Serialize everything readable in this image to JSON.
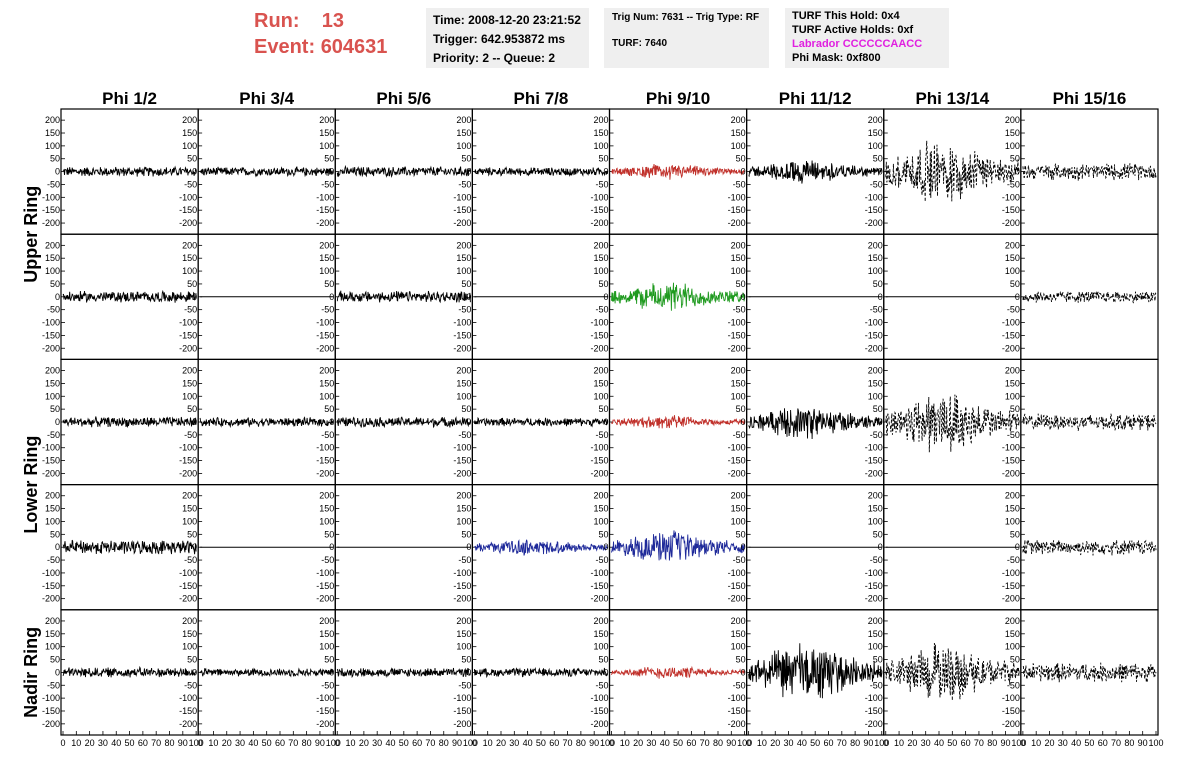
{
  "header": {
    "run_label": "Run:",
    "run_value": "13",
    "event_label": "Event:",
    "event_value": "604631",
    "time": "Time: 2008-12-20 23:21:52",
    "trigger": "Trigger: 642.953872 ms",
    "priority": "Priority: 2 -- Queue: 2",
    "trig_num": "Trig Num: 7631 -- Trig Type: RF",
    "turf": "TURF: 7640",
    "turf_hold": "TURF This Hold: 0x4",
    "turf_active": "TURF Active Holds: 0xf",
    "labrador": "Labrador CCCCCCAACC",
    "phi_mask": "Phi Mask: 0xf800"
  },
  "colors": {
    "run_text": "#d9534f",
    "labrador_text": "#e020e0",
    "trace_black": "#000000",
    "trace_red": "#c0302a",
    "trace_green": "#1f9a1f",
    "trace_blue": "#1f2a9a",
    "info_bg": "#efefef"
  },
  "chart_data": {
    "type": "line",
    "columns": [
      "Phi 1/2",
      "Phi 3/4",
      "Phi 5/6",
      "Phi 7/8",
      "Phi 9/10",
      "Phi 11/12",
      "Phi 13/14",
      "Phi 15/16"
    ],
    "rows": [
      "Upper Ring",
      "Lower Ring",
      "Nadir Ring"
    ],
    "ylim": [
      -220,
      220
    ],
    "yticks": [
      -200,
      -150,
      -100,
      -50,
      0,
      50,
      100,
      150,
      200
    ],
    "xlim": [
      0,
      100
    ],
    "xticks": [
      0,
      10,
      20,
      30,
      40,
      50,
      60,
      70,
      80,
      90,
      100
    ],
    "panels": [
      [
        {
          "style": "black",
          "amp": 18,
          "flat": false,
          "dashed": false
        },
        {
          "style": "black",
          "amp": 16,
          "flat": false,
          "dashed": false
        },
        {
          "style": "black",
          "amp": 18,
          "flat": false,
          "dashed": false
        },
        {
          "style": "black",
          "amp": 15,
          "flat": false,
          "dashed": false
        },
        {
          "style": "red",
          "amp": 28,
          "flat": false,
          "dashed": false
        },
        {
          "style": "black",
          "amp": 45,
          "flat": false,
          "dashed": false
        },
        {
          "style": "black",
          "amp": 120,
          "flat": false,
          "dashed": true
        },
        {
          "style": "black",
          "amp": 30,
          "flat": false,
          "dashed": true
        }
      ],
      [
        {
          "style": "black",
          "amp": 20,
          "flat": false,
          "dashed": false
        },
        {
          "style": "black",
          "amp": 0,
          "flat": true,
          "dashed": false
        },
        {
          "style": "black",
          "amp": 20,
          "flat": false,
          "dashed": false
        },
        {
          "style": "black",
          "amp": 0,
          "flat": true,
          "dashed": false
        },
        {
          "style": "green",
          "amp": 55,
          "flat": false,
          "dashed": false
        },
        {
          "style": "black",
          "amp": 0,
          "flat": true,
          "dashed": false
        },
        {
          "style": "black",
          "amp": 0,
          "flat": true,
          "dashed": false
        },
        {
          "style": "black",
          "amp": 22,
          "flat": false,
          "dashed": true
        }
      ],
      [
        {
          "style": "black",
          "amp": 18,
          "flat": false,
          "dashed": false
        },
        {
          "style": "black",
          "amp": 16,
          "flat": false,
          "dashed": false
        },
        {
          "style": "black",
          "amp": 18,
          "flat": false,
          "dashed": false
        },
        {
          "style": "black",
          "amp": 15,
          "flat": false,
          "dashed": false
        },
        {
          "style": "red",
          "amp": 25,
          "flat": false,
          "dashed": false
        },
        {
          "style": "black",
          "amp": 60,
          "flat": false,
          "dashed": false
        },
        {
          "style": "black",
          "amp": 120,
          "flat": false,
          "dashed": true
        },
        {
          "style": "black",
          "amp": 30,
          "flat": false,
          "dashed": true
        }
      ],
      [
        {
          "style": "black",
          "amp": 25,
          "flat": false,
          "dashed": false
        },
        {
          "style": "black",
          "amp": 0,
          "flat": true,
          "dashed": false
        },
        {
          "style": "black",
          "amp": 0,
          "flat": true,
          "dashed": false
        },
        {
          "style": "blue",
          "amp": 30,
          "flat": false,
          "dashed": false
        },
        {
          "style": "blue",
          "amp": 60,
          "flat": false,
          "dashed": false
        },
        {
          "style": "black",
          "amp": 0,
          "flat": true,
          "dashed": false
        },
        {
          "style": "black",
          "amp": 0,
          "flat": true,
          "dashed": false
        },
        {
          "style": "black",
          "amp": 28,
          "flat": false,
          "dashed": true
        }
      ],
      [
        {
          "style": "black",
          "amp": 18,
          "flat": false,
          "dashed": false
        },
        {
          "style": "black",
          "amp": 14,
          "flat": false,
          "dashed": false
        },
        {
          "style": "black",
          "amp": 16,
          "flat": false,
          "dashed": false
        },
        {
          "style": "black",
          "amp": 15,
          "flat": false,
          "dashed": false
        },
        {
          "style": "red",
          "amp": 24,
          "flat": false,
          "dashed": false
        },
        {
          "style": "black",
          "amp": 110,
          "flat": false,
          "dashed": false
        },
        {
          "style": "black",
          "amp": 110,
          "flat": false,
          "dashed": true
        },
        {
          "style": "black",
          "amp": 35,
          "flat": false,
          "dashed": true
        }
      ]
    ]
  }
}
